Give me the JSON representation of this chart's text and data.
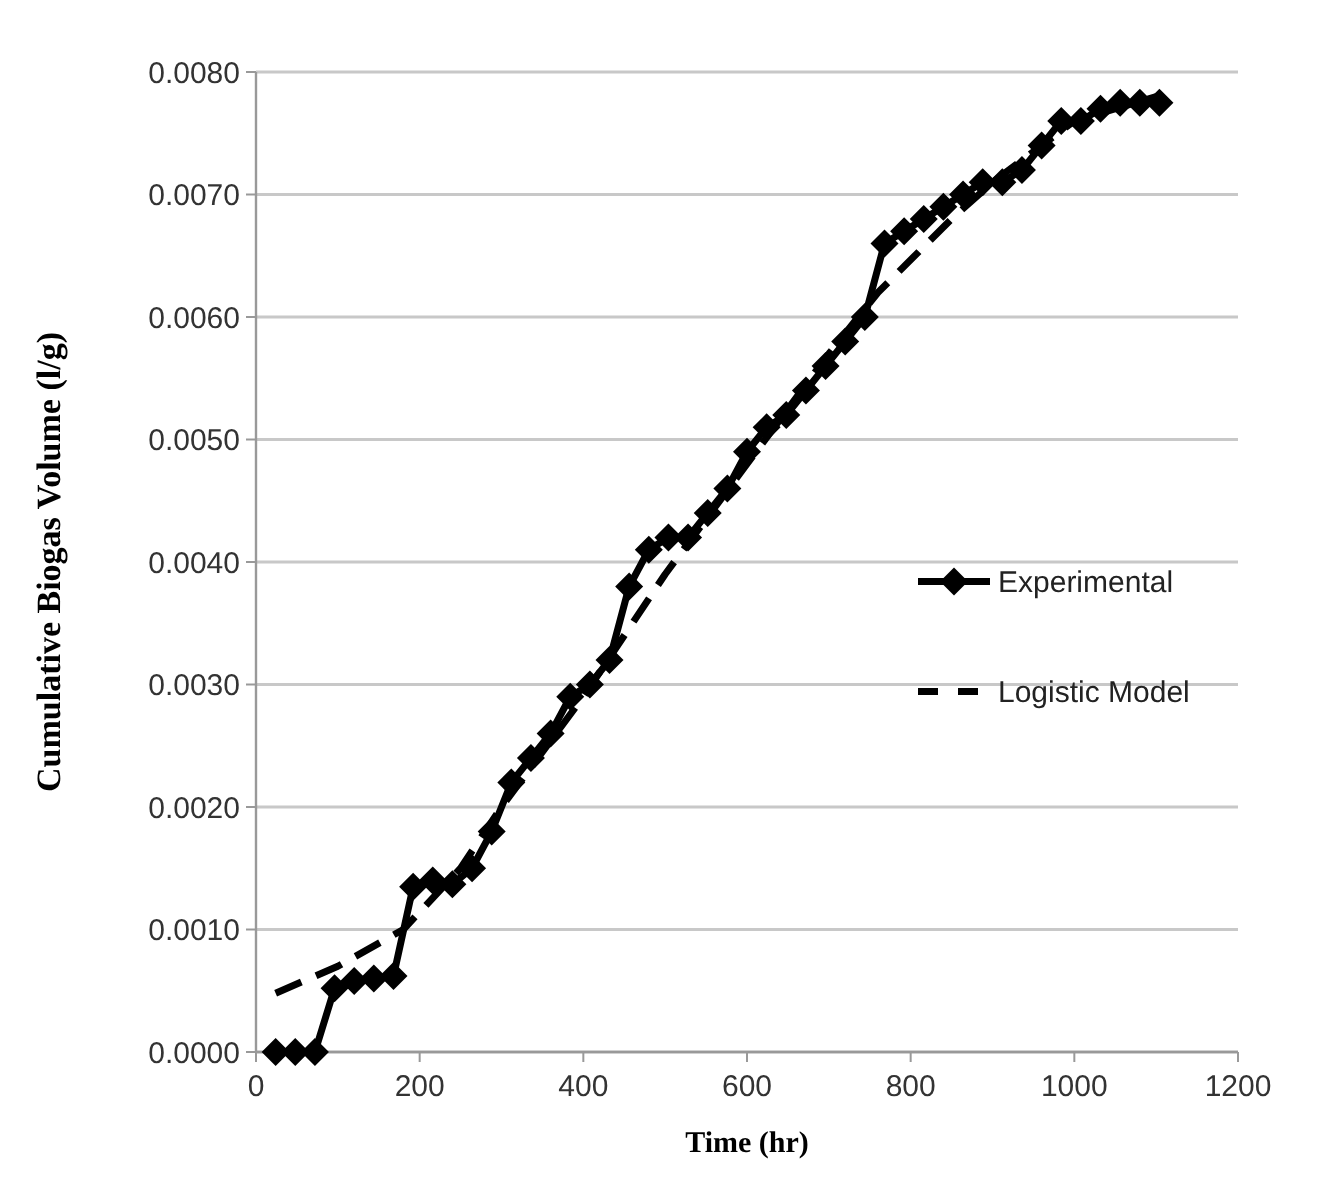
{
  "chart_data": {
    "type": "line",
    "xlabel": "Time (hr)",
    "ylabel": "Cumulative Biogas Volume (l/g)",
    "xlim": [
      0,
      1200
    ],
    "xticks": [
      0,
      200,
      400,
      600,
      800,
      1000,
      1200
    ],
    "ylim": [
      0,
      0.008
    ],
    "yticks": [
      {
        "value": 0,
        "label": "0.0000"
      },
      {
        "value": 0.001,
        "label": "0.0010"
      },
      {
        "value": 0.002,
        "label": "0.0020"
      },
      {
        "value": 0.003,
        "label": "0.0030"
      },
      {
        "value": 0.004,
        "label": "0.0040"
      },
      {
        "value": 0.005,
        "label": "0.0050"
      },
      {
        "value": 0.006,
        "label": "0.0060"
      },
      {
        "value": 0.007,
        "label": "0.0070"
      },
      {
        "value": 0.008,
        "label": "0.0080"
      }
    ],
    "grid": "y",
    "legend": "right",
    "series": [
      {
        "name": "Experimental",
        "color": "#000000",
        "marker": "diamond",
        "line_style": "solid",
        "x": [
          24,
          48,
          72,
          96,
          120,
          144,
          168,
          192,
          216,
          240,
          264,
          288,
          312,
          336,
          360,
          384,
          408,
          432,
          456,
          480,
          504,
          528,
          552,
          576,
          600,
          624,
          648,
          672,
          696,
          720,
          744,
          768,
          792,
          816,
          840,
          864,
          888,
          912,
          936,
          960,
          984,
          1008,
          1032,
          1056,
          1080,
          1104
        ],
        "values": [
          0,
          0,
          0,
          0.00052,
          0.00058,
          0.0006,
          0.00062,
          0.00135,
          0.0014,
          0.00137,
          0.0015,
          0.0018,
          0.0022,
          0.0024,
          0.0026,
          0.0029,
          0.003,
          0.0032,
          0.0038,
          0.0041,
          0.0042,
          0.0042,
          0.0044,
          0.0046,
          0.0049,
          0.0051,
          0.0052,
          0.0054,
          0.0056,
          0.0058,
          0.006,
          0.0066,
          0.0067,
          0.0068,
          0.0069,
          0.007,
          0.0071,
          0.0071,
          0.0072,
          0.0074,
          0.0076,
          0.0076,
          0.0077,
          0.00775,
          0.00775,
          0.00775
        ]
      },
      {
        "name": "Logistic Model",
        "color": "#000000",
        "marker": "none",
        "line_style": "dashed",
        "x": [
          24,
          100,
          180,
          250,
          300,
          400,
          500,
          600,
          700,
          760,
          850,
          900,
          1000,
          1100
        ],
        "values": [
          0.00048,
          0.0007,
          0.001,
          0.0015,
          0.002,
          0.0029,
          0.0039,
          0.0048,
          0.0057,
          0.0062,
          0.0068,
          0.0071,
          0.0076,
          0.0078
        ]
      }
    ]
  }
}
